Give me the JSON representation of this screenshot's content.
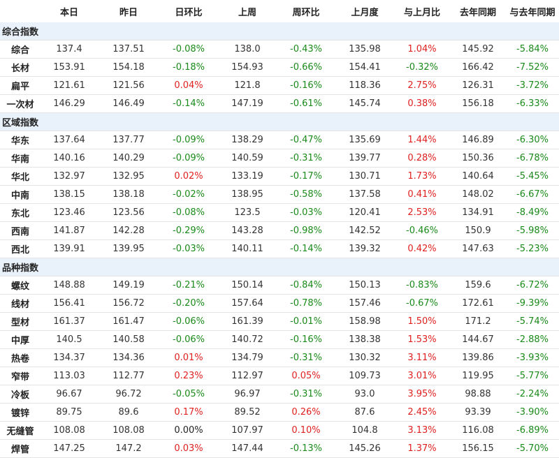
{
  "headers": [
    "",
    "本日",
    "昨日",
    "日环比",
    "上周",
    "周环比",
    "上月度",
    "与上月比",
    "去年同期",
    "与去年同期"
  ],
  "sections": [
    {
      "title": "综合指数",
      "rows": [
        [
          "综合",
          "137.4",
          "137.51",
          "-0.08%",
          "138.0",
          "-0.43%",
          "135.98",
          "1.04%",
          "145.92",
          "-5.84%"
        ],
        [
          "长材",
          "153.91",
          "154.18",
          "-0.18%",
          "154.93",
          "-0.66%",
          "154.41",
          "-0.32%",
          "166.42",
          "-7.52%"
        ],
        [
          "扁平",
          "121.61",
          "121.56",
          "0.04%",
          "121.8",
          "-0.16%",
          "118.36",
          "2.75%",
          "126.31",
          "-3.72%"
        ],
        [
          "一次材",
          "146.29",
          "146.49",
          "-0.14%",
          "147.19",
          "-0.61%",
          "145.74",
          "0.38%",
          "156.18",
          "-6.33%"
        ]
      ]
    },
    {
      "title": "区域指数",
      "rows": [
        [
          "华东",
          "137.64",
          "137.77",
          "-0.09%",
          "138.29",
          "-0.47%",
          "135.69",
          "1.44%",
          "146.89",
          "-6.30%"
        ],
        [
          "华南",
          "140.16",
          "140.29",
          "-0.09%",
          "140.59",
          "-0.31%",
          "139.77",
          "0.28%",
          "150.36",
          "-6.78%"
        ],
        [
          "华北",
          "132.97",
          "132.95",
          "0.02%",
          "133.19",
          "-0.17%",
          "130.71",
          "1.73%",
          "140.64",
          "-5.45%"
        ],
        [
          "中南",
          "138.15",
          "138.18",
          "-0.02%",
          "138.95",
          "-0.58%",
          "137.58",
          "0.41%",
          "148.02",
          "-6.67%"
        ],
        [
          "东北",
          "123.46",
          "123.56",
          "-0.08%",
          "123.5",
          "-0.03%",
          "120.41",
          "2.53%",
          "134.91",
          "-8.49%"
        ],
        [
          "西南",
          "141.87",
          "142.28",
          "-0.29%",
          "143.28",
          "-0.98%",
          "142.52",
          "-0.46%",
          "150.9",
          "-5.98%"
        ],
        [
          "西北",
          "139.91",
          "139.95",
          "-0.03%",
          "140.11",
          "-0.14%",
          "139.32",
          "0.42%",
          "147.63",
          "-5.23%"
        ]
      ]
    },
    {
      "title": "品种指数",
      "rows": [
        [
          "螺纹",
          "148.88",
          "149.19",
          "-0.21%",
          "150.14",
          "-0.84%",
          "150.13",
          "-0.83%",
          "159.6",
          "-6.72%"
        ],
        [
          "线材",
          "156.41",
          "156.72",
          "-0.20%",
          "157.64",
          "-0.78%",
          "157.46",
          "-0.67%",
          "172.61",
          "-9.39%"
        ],
        [
          "型材",
          "161.37",
          "161.47",
          "-0.06%",
          "161.39",
          "-0.01%",
          "158.98",
          "1.50%",
          "171.2",
          "-5.74%"
        ],
        [
          "中厚",
          "140.5",
          "140.58",
          "-0.06%",
          "140.72",
          "-0.16%",
          "138.38",
          "1.53%",
          "144.67",
          "-2.88%"
        ],
        [
          "热卷",
          "134.37",
          "134.36",
          "0.01%",
          "134.79",
          "-0.31%",
          "130.32",
          "3.11%",
          "139.86",
          "-3.93%"
        ],
        [
          "窄带",
          "113.03",
          "112.77",
          "0.23%",
          "112.97",
          "0.05%",
          "109.73",
          "3.01%",
          "119.95",
          "-5.77%"
        ],
        [
          "冷板",
          "96.67",
          "96.72",
          "-0.05%",
          "96.97",
          "-0.31%",
          "93.0",
          "3.95%",
          "98.88",
          "-2.24%"
        ],
        [
          "镀锌",
          "89.75",
          "89.6",
          "0.17%",
          "89.52",
          "0.26%",
          "87.6",
          "2.45%",
          "93.39",
          "-3.90%"
        ],
        [
          "无缝管",
          "108.08",
          "108.08",
          "0.00%",
          "107.97",
          "0.10%",
          "104.8",
          "3.13%",
          "116.08",
          "-6.89%"
        ],
        [
          "焊管",
          "147.25",
          "147.2",
          "0.03%",
          "147.44",
          "-0.13%",
          "145.26",
          "1.37%",
          "156.15",
          "-5.70%"
        ]
      ]
    }
  ],
  "colors": {
    "negative": "#1a8a1a",
    "positive": "#e02020",
    "section_bg": "#e9f1fa"
  }
}
